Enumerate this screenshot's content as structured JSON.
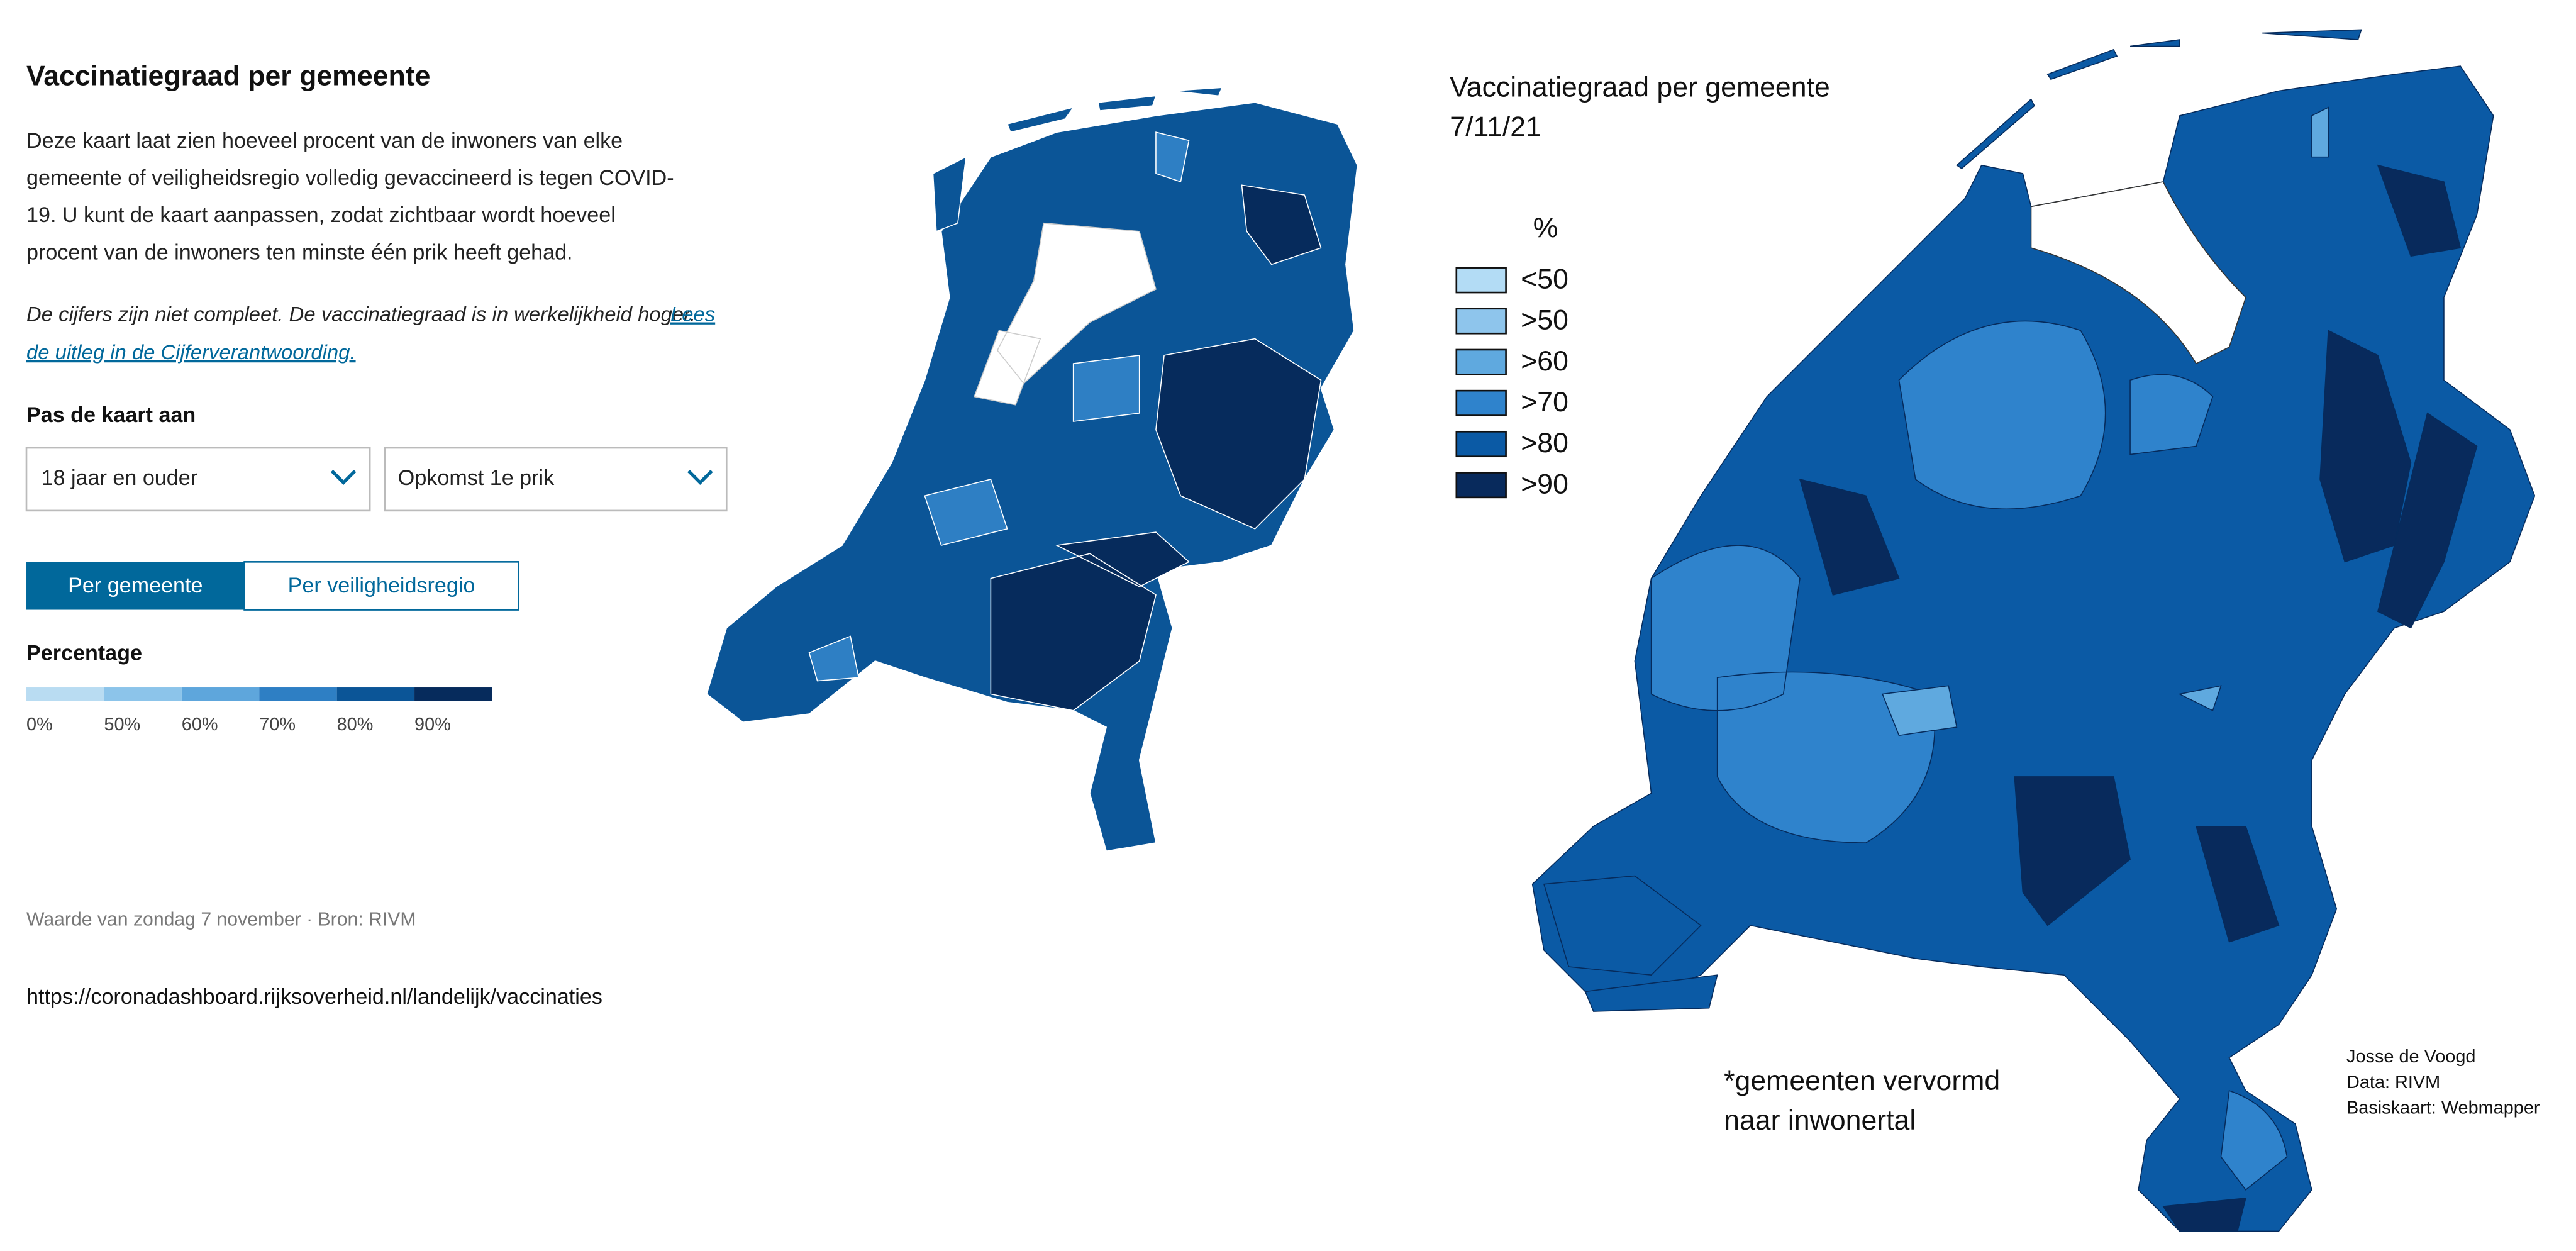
{
  "header": {
    "title": "Vaccinatiegraad per gemeente"
  },
  "intro": {
    "lines": [
      "Deze kaart laat zien hoeveel procent van de inwoners van elke",
      "gemeente of veiligheidsregio volledig gevaccineerd is tegen COVID-",
      "19. U kunt de kaart aanpassen, zodat zichtbaar wordt hoeveel",
      "procent van de inwoners ten minste één prik heeft gehad."
    ]
  },
  "note": {
    "text": "De cijfers zijn niet compleet. De vaccinatiegraad is in werkelijkheid hoger.",
    "link_lines": [
      "Lees",
      "de uitleg in de Cijferverantwoording."
    ]
  },
  "controls": {
    "label": "Pas de kaart aan",
    "dropdowns": [
      "18 jaar en ouder",
      "Opkomst 1e prik"
    ],
    "tabs": [
      "Per gemeente",
      "Per veiligheidsregio"
    ]
  },
  "legend": {
    "title": "Percentage",
    "labels": [
      "0%",
      "50%",
      "60%",
      "70%",
      "80%",
      "90%"
    ],
    "colors": [
      "#b9dcf2",
      "#8cc4ea",
      "#5ea6dc",
      "#2e7fc4",
      "#0b5597",
      "#062b5c"
    ]
  },
  "footer": {
    "source": "Waarde van zondag 7 november · Bron: RIVM",
    "url": "https://coronadashboard.rijksoverheid.nl/landelijk/vaccinaties"
  },
  "cartogram": {
    "title_lines": [
      "Vaccinatiegraad per gemeente",
      "7/11/21"
    ],
    "legend_title": "%",
    "legend_items": [
      "<50",
      ">50",
      ">60",
      ">70",
      ">80",
      ">90"
    ],
    "legend_colors": [
      "#b3dcf5",
      "#8ec5ec",
      "#5fa9df",
      "#2f83cc",
      "#0b5aa5",
      "#082a5c"
    ],
    "note_lines": [
      "*gemeenten vervormd",
      "naar inwonertal"
    ],
    "credit_lines": [
      "Josse de Voogd",
      "Data: RIVM",
      "Basiskaart: Webmapper"
    ]
  }
}
